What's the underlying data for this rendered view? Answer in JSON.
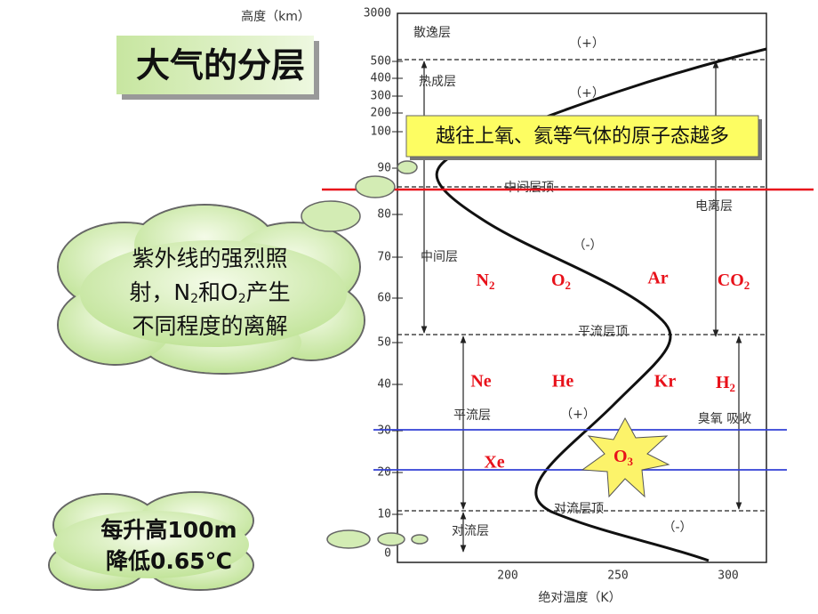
{
  "title": "大气的分层",
  "chart": {
    "y_axis_title": "高度（km）",
    "x_axis_title": "绝对温度（K）",
    "y_ticks": [
      "0",
      "10",
      "20",
      "30",
      "40",
      "50",
      "60",
      "70",
      "80",
      "90",
      "100",
      "200",
      "300",
      "400",
      "500",
      "3000"
    ],
    "x_ticks": [
      "200",
      "250",
      "300"
    ],
    "labels": {
      "exosphere": "散逸层",
      "sign_1": "（+）",
      "thermosphere": "热成层",
      "sign_2": "（+）",
      "mesopause": "中间层顶",
      "ionosphere": "电离层",
      "sign_3": "（-）",
      "mesosphere": "中间层",
      "stratopause": "平流层顶",
      "stratosphere": "平流层",
      "sign_4": "（+）",
      "ozone_absorption": "臭氧 吸收",
      "tropopause": "对流层顶",
      "troposphere": "对流层",
      "sign_5": "（-）"
    }
  },
  "note": "越往上氧、氦等气体的原子态越多",
  "gases": [
    {
      "symbol": "N",
      "sub": "2"
    },
    {
      "symbol": "O",
      "sub": "2"
    },
    {
      "symbol": "Ar"
    },
    {
      "symbol": "CO",
      "sub": "2"
    },
    {
      "symbol": "Ne"
    },
    {
      "symbol": "He"
    },
    {
      "symbol": "Kr"
    },
    {
      "symbol": "H",
      "sub": "2"
    },
    {
      "symbol": "Xe"
    }
  ],
  "ozone": {
    "symbol": "O",
    "sub": "3"
  },
  "cloud_1": {
    "lines": [
      "紫外线的强烈照",
      "不同程度的离解"
    ],
    "line_2": [
      "射，N",
      "2",
      "和O",
      "2",
      "产生"
    ]
  },
  "cloud_2": {
    "lines": [
      "每升高100m",
      "降低0.65℃"
    ]
  }
}
